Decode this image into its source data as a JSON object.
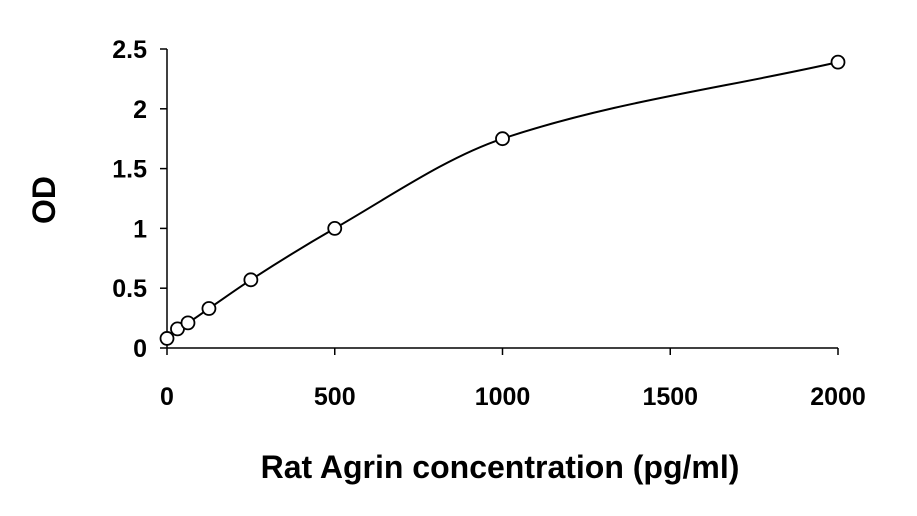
{
  "chart_data": {
    "type": "scatter",
    "xlabel": "Rat Agrin concentration (pg/ml)",
    "ylabel": "OD",
    "xlim": [
      0,
      2000
    ],
    "ylim": [
      0,
      2.5
    ],
    "x_ticks": [
      "0",
      "500",
      "1000",
      "1500",
      "2000"
    ],
    "y_ticks": [
      "0",
      "0.5",
      "1",
      "1.5",
      "2",
      "2.5"
    ],
    "grid": false,
    "legend": "none",
    "marker": "open-circle",
    "fit": "smooth-curve",
    "series": [
      {
        "x": [
          0,
          31.25,
          62.5,
          125,
          250,
          500,
          1000,
          2000
        ],
        "y": [
          0.08,
          0.16,
          0.21,
          0.33,
          0.57,
          1.0,
          1.75,
          2.39
        ]
      }
    ]
  }
}
